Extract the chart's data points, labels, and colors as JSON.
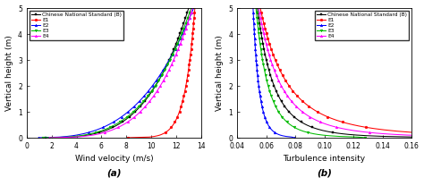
{
  "legend_labels": [
    "Chinese National Standard (B)",
    "E1",
    "E2",
    "E3",
    "E4"
  ],
  "legend_colors": [
    "#000000",
    "#ff0000",
    "#0000ff",
    "#00bb00",
    "#ff00ff"
  ],
  "legend_markers_a": [
    "s",
    "o",
    "^",
    "v",
    "^"
  ],
  "legend_markers_b": [
    "s",
    "o",
    "^",
    "v",
    "^"
  ],
  "y_label": "Vertical height (m)",
  "xa_label": "Wind velocity (m/s)",
  "xb_label": "Turbulence intensity",
  "caption_a": "(a)",
  "caption_b": "(b)",
  "ylim": [
    0,
    5
  ],
  "xlim_a": [
    0,
    14
  ],
  "xlim_b": [
    0.04,
    0.16
  ],
  "xticks_a": [
    0,
    2,
    4,
    6,
    8,
    10,
    12,
    14
  ],
  "xticks_b": [
    0.04,
    0.06,
    0.08,
    0.1,
    0.12,
    0.14,
    0.16
  ],
  "yticks": [
    0,
    1,
    2,
    3,
    4,
    5
  ],
  "background_color": "#ffffff"
}
